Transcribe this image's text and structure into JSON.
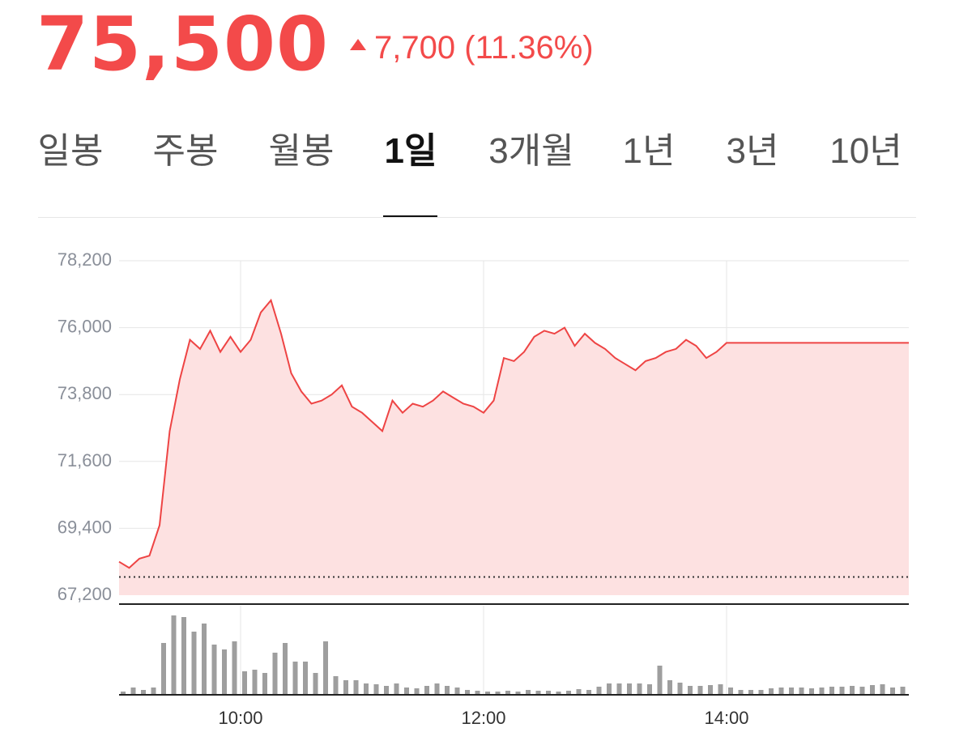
{
  "header": {
    "price": "75,500",
    "change": "7,700 (11.36%)",
    "direction": "up"
  },
  "tabs": [
    {
      "label": "일봉",
      "active": false
    },
    {
      "label": "주봉",
      "active": false
    },
    {
      "label": "월봉",
      "active": false
    },
    {
      "label": "1일",
      "active": true
    },
    {
      "label": "3개월",
      "active": false
    },
    {
      "label": "1년",
      "active": false
    },
    {
      "label": "3년",
      "active": false
    },
    {
      "label": "10년",
      "active": false
    }
  ],
  "colors": {
    "accent": "#f34a4a",
    "line": "#ee4444",
    "area": "#fde1e1",
    "volume": "#9e9e9e",
    "grid": "#e6e6e6"
  },
  "chart_data": {
    "type": "area",
    "x_ticks": [
      "10:00",
      "12:00",
      "14:00"
    ],
    "y_ticks": [
      "78,200",
      "76,000",
      "73,800",
      "71,600",
      "69,400",
      "67,200"
    ],
    "ylim": [
      67200,
      78200
    ],
    "xlim": [
      "09:00",
      "15:30"
    ],
    "previous_close": 67800,
    "grid": true,
    "price_series": {
      "x": [
        "09:00",
        "09:05",
        "09:10",
        "09:15",
        "09:20",
        "09:25",
        "09:30",
        "09:35",
        "09:40",
        "09:45",
        "09:50",
        "09:55",
        "10:00",
        "10:05",
        "10:10",
        "10:15",
        "10:20",
        "10:25",
        "10:30",
        "10:35",
        "10:40",
        "10:45",
        "10:50",
        "10:55",
        "11:00",
        "11:05",
        "11:10",
        "11:15",
        "11:20",
        "11:25",
        "11:30",
        "11:35",
        "11:40",
        "11:45",
        "11:50",
        "11:55",
        "12:00",
        "12:05",
        "12:10",
        "12:15",
        "12:20",
        "12:25",
        "12:30",
        "12:35",
        "12:40",
        "12:45",
        "12:50",
        "12:55",
        "13:00",
        "13:05",
        "13:10",
        "13:15",
        "13:20",
        "13:25",
        "13:30",
        "13:35",
        "13:40",
        "13:45",
        "13:50",
        "13:55",
        "14:00",
        "14:05",
        "14:10",
        "14:15",
        "14:20",
        "14:25",
        "14:30",
        "14:35",
        "14:40",
        "14:45",
        "14:50",
        "14:55",
        "15:00",
        "15:05",
        "15:10",
        "15:15",
        "15:20",
        "15:25",
        "15:30"
      ],
      "y": [
        68300,
        68100,
        68400,
        68500,
        69500,
        72600,
        74300,
        75600,
        75300,
        75900,
        75200,
        75700,
        75200,
        75600,
        76500,
        76900,
        75800,
        74500,
        73900,
        73500,
        73600,
        73800,
        74100,
        73400,
        73200,
        72900,
        72600,
        73600,
        73200,
        73500,
        73400,
        73600,
        73900,
        73700,
        73500,
        73400,
        73200,
        73600,
        75000,
        74900,
        75200,
        75700,
        75900,
        75800,
        76000,
        75400,
        75800,
        75500,
        75300,
        75000,
        74800,
        74600,
        74900,
        75000,
        75200,
        75300,
        75600,
        75400,
        75000,
        75200,
        75500,
        75500,
        75500,
        75500,
        75500,
        75500,
        75500,
        75500,
        75500,
        75500,
        75500,
        75500,
        75500,
        75500,
        75500,
        75500,
        75500,
        75500,
        75500
      ]
    },
    "volume_series": {
      "x": [
        "09:00",
        "09:05",
        "09:10",
        "09:15",
        "09:20",
        "09:25",
        "09:30",
        "09:35",
        "09:40",
        "09:45",
        "09:50",
        "09:55",
        "10:00",
        "10:05",
        "10:10",
        "10:15",
        "10:20",
        "10:25",
        "10:30",
        "10:35",
        "10:40",
        "10:45",
        "10:50",
        "10:55",
        "11:00",
        "11:05",
        "11:10",
        "11:15",
        "11:20",
        "11:25",
        "11:30",
        "11:35",
        "11:40",
        "11:45",
        "11:50",
        "11:55",
        "12:00",
        "12:05",
        "12:10",
        "12:15",
        "12:20",
        "12:25",
        "12:30",
        "12:35",
        "12:40",
        "12:45",
        "12:50",
        "12:55",
        "13:00",
        "13:05",
        "13:10",
        "13:15",
        "13:20",
        "13:25",
        "13:30",
        "13:35",
        "13:40",
        "13:45",
        "13:50",
        "13:55",
        "14:00",
        "14:05",
        "14:10",
        "14:15",
        "14:20",
        "14:25",
        "14:30",
        "14:35",
        "14:40",
        "14:45",
        "14:50",
        "14:55",
        "15:00",
        "15:05",
        "15:10",
        "15:15",
        "15:20",
        "15:25"
      ],
      "values": [
        0.04,
        0.09,
        0.06,
        0.09,
        0.64,
        0.98,
        0.96,
        0.78,
        0.88,
        0.62,
        0.56,
        0.66,
        0.29,
        0.31,
        0.27,
        0.52,
        0.64,
        0.41,
        0.41,
        0.27,
        0.66,
        0.23,
        0.18,
        0.18,
        0.14,
        0.13,
        0.11,
        0.14,
        0.09,
        0.08,
        0.11,
        0.14,
        0.11,
        0.09,
        0.06,
        0.05,
        0.04,
        0.04,
        0.05,
        0.04,
        0.06,
        0.05,
        0.05,
        0.04,
        0.05,
        0.07,
        0.06,
        0.1,
        0.14,
        0.14,
        0.14,
        0.14,
        0.13,
        0.36,
        0.18,
        0.15,
        0.11,
        0.11,
        0.12,
        0.13,
        0.09,
        0.06,
        0.06,
        0.06,
        0.08,
        0.09,
        0.09,
        0.09,
        0.08,
        0.09,
        0.1,
        0.1,
        0.11,
        0.1,
        0.12,
        0.13,
        0.09,
        0.1
      ]
    }
  }
}
